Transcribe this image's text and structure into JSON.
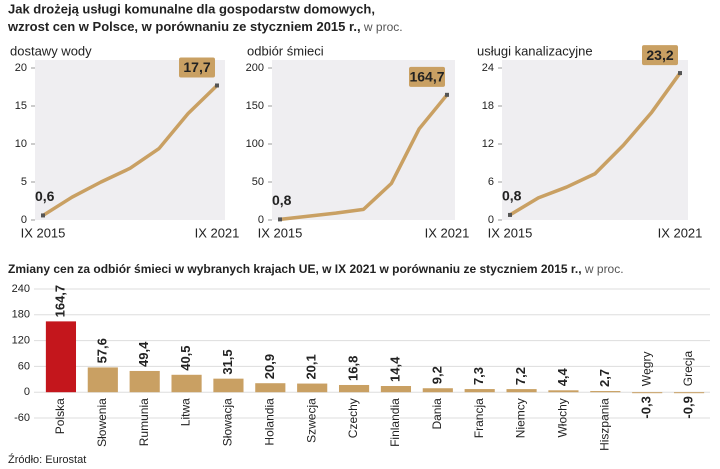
{
  "header": {
    "title_bold": "Jak drożeją usługi komunalne dla gospodarstw domowych,",
    "title_bold2": "wzrost cen w Polsce, w porównaniu ze styczniem 2015 r.,",
    "title_unit": "w proc."
  },
  "chart_data": [
    {
      "type": "line",
      "title": "dostawy wody",
      "categories": [
        "IX 2015",
        null,
        null,
        null,
        null,
        null,
        "IX 2021"
      ],
      "values": [
        0.6,
        3.0,
        5.0,
        6.8,
        9.4,
        14.0,
        17.7
      ],
      "value_labels": [
        "0,6",
        null,
        null,
        null,
        null,
        null,
        "17,7"
      ],
      "color": "#c9a063",
      "ylim": [
        0,
        20
      ],
      "yticks": [
        0,
        5,
        10,
        15,
        20
      ]
    },
    {
      "type": "line",
      "title": "odbiór śmieci",
      "categories": [
        "IX 2015",
        null,
        null,
        null,
        null,
        null,
        "IX 2021"
      ],
      "values": [
        0.8,
        5,
        9,
        14,
        48,
        120,
        164.7
      ],
      "value_labels": [
        "0,8",
        null,
        null,
        null,
        null,
        null,
        "164,7"
      ],
      "color": "#c9a063",
      "ylim": [
        0,
        200
      ],
      "yticks": [
        0,
        50,
        100,
        150,
        200
      ]
    },
    {
      "type": "line",
      "title": "usługi kanalizacyjne",
      "categories": [
        "IX 2015",
        null,
        null,
        null,
        null,
        null,
        "IX 2021"
      ],
      "values": [
        0.8,
        3.5,
        5.2,
        7.3,
        11.8,
        17.0,
        23.2
      ],
      "value_labels": [
        "0,8",
        null,
        null,
        null,
        null,
        null,
        "23,2"
      ],
      "color": "#c9a063",
      "ylim": [
        0,
        24
      ],
      "yticks": [
        0,
        6,
        12,
        18,
        24
      ]
    },
    {
      "type": "bar",
      "title": "Zmiany cen za odbiór śmieci w wybranych krajach UE, w IX 2021 w porównaniu ze styczniem 2015 r.,",
      "title_unit": "w proc.",
      "categories": [
        "Polska",
        "Słowenia",
        "Rumunia",
        "Litwa",
        "Słowacja",
        "Holandia",
        "Szwecja",
        "Czechy",
        "Finlandia",
        "Dania",
        "Francja",
        "Niemcy",
        "Włochy",
        "Hiszpania",
        "Węgry",
        "Grecja"
      ],
      "values": [
        164.7,
        57.6,
        49.4,
        40.5,
        31.5,
        20.9,
        20.1,
        16.8,
        14.4,
        9.2,
        7.3,
        7.2,
        4.4,
        2.7,
        -0.3,
        -0.9
      ],
      "value_labels": [
        "164,7",
        "57,6",
        "49,4",
        "40,5",
        "31,5",
        "20,9",
        "20,1",
        "16,8",
        "14,4",
        "9,2",
        "7,3",
        "7,2",
        "4,4",
        "2,7",
        "-0,3",
        "-0,9"
      ],
      "colors": [
        "#c4161c",
        "#c9a063",
        "#c9a063",
        "#c9a063",
        "#c9a063",
        "#c9a063",
        "#c9a063",
        "#c9a063",
        "#c9a063",
        "#c9a063",
        "#c9a063",
        "#c9a063",
        "#c9a063",
        "#c9a063",
        "#c9a063",
        "#c9a063"
      ],
      "ylim": [
        -60,
        240
      ],
      "yticks": [
        -60,
        0,
        60,
        120,
        180,
        240
      ],
      "grid": true
    }
  ],
  "source": "Źródło: Eurostat"
}
